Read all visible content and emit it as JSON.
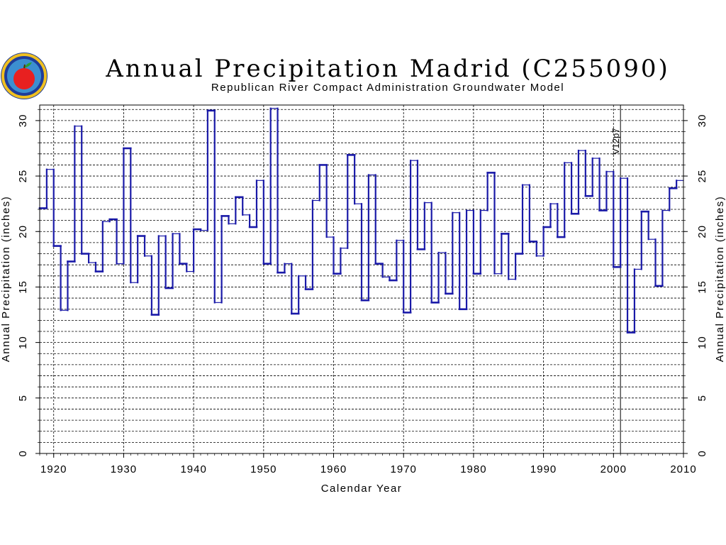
{
  "chart_data": {
    "type": "line",
    "step": true,
    "title": "Annual Precipitation Madrid (C255090)",
    "subtitle": "Republican River Compact Administration Groundwater Model",
    "xlabel": "Calendar Year",
    "ylabel": "Annual Precipitation (inches)",
    "y2label": "Annual Precipitation (inches)",
    "xlim": [
      1918,
      2010
    ],
    "ylim": [
      0,
      31.4
    ],
    "x_ticks": [
      "1920",
      "1930",
      "1940",
      "1950",
      "1960",
      "1970",
      "1980",
      "1990",
      "2000",
      "2010"
    ],
    "y_ticks": [
      "0",
      "5",
      "10",
      "15",
      "20",
      "25",
      "30"
    ],
    "grid": true,
    "line_color": "#1a1aa8",
    "annotations": [
      {
        "x": 2001,
        "label": "V12p7"
      }
    ],
    "series": [
      {
        "x": [
          1918,
          1919,
          1920,
          1921,
          1922,
          1923,
          1924,
          1925,
          1926,
          1927,
          1928,
          1929,
          1930,
          1931,
          1932,
          1933,
          1934,
          1935,
          1936,
          1937,
          1938,
          1939,
          1940,
          1941,
          1942,
          1943,
          1944,
          1945,
          1946,
          1947,
          1948,
          1949,
          1950,
          1951,
          1952,
          1953,
          1954,
          1955,
          1956,
          1957,
          1958,
          1959,
          1960,
          1961,
          1962,
          1963,
          1964,
          1965,
          1966,
          1967,
          1968,
          1969,
          1970,
          1971,
          1972,
          1973,
          1974,
          1975,
          1976,
          1977,
          1978,
          1979,
          1980,
          1981,
          1982,
          1983,
          1984,
          1985,
          1986,
          1987,
          1988,
          1989,
          1990,
          1991,
          1992,
          1993,
          1994,
          1995,
          1996,
          1997,
          1998,
          1999,
          2000,
          2001,
          2002,
          2003,
          2004,
          2005,
          2006,
          2007,
          2008,
          2009
        ],
        "values": [
          22.1,
          25.6,
          18.7,
          12.9,
          17.3,
          29.5,
          18.0,
          17.2,
          16.4,
          20.9,
          21.1,
          17.1,
          27.5,
          15.4,
          19.6,
          17.8,
          12.5,
          19.6,
          14.9,
          19.8,
          17.1,
          16.4,
          20.2,
          20.1,
          30.9,
          13.6,
          21.4,
          20.7,
          23.1,
          21.5,
          20.4,
          24.6,
          17.1,
          31.1,
          16.3,
          17.1,
          12.6,
          16.0,
          14.8,
          22.8,
          26.0,
          19.5,
          16.2,
          18.5,
          26.9,
          22.5,
          13.8,
          25.1,
          17.1,
          15.9,
          15.6,
          19.2,
          12.7,
          26.4,
          18.4,
          22.6,
          13.6,
          18.1,
          14.4,
          21.7,
          13.0,
          21.9,
          16.2,
          21.9,
          25.3,
          16.2,
          19.8,
          15.7,
          18.0,
          24.2,
          19.1,
          17.8,
          20.4,
          22.5,
          19.5,
          26.2,
          21.6,
          27.3,
          23.2,
          26.6,
          21.9,
          25.4,
          16.8,
          24.8,
          10.9,
          16.6,
          21.8,
          19.3,
          15.1,
          21.9,
          23.9,
          24.6
        ]
      }
    ]
  }
}
